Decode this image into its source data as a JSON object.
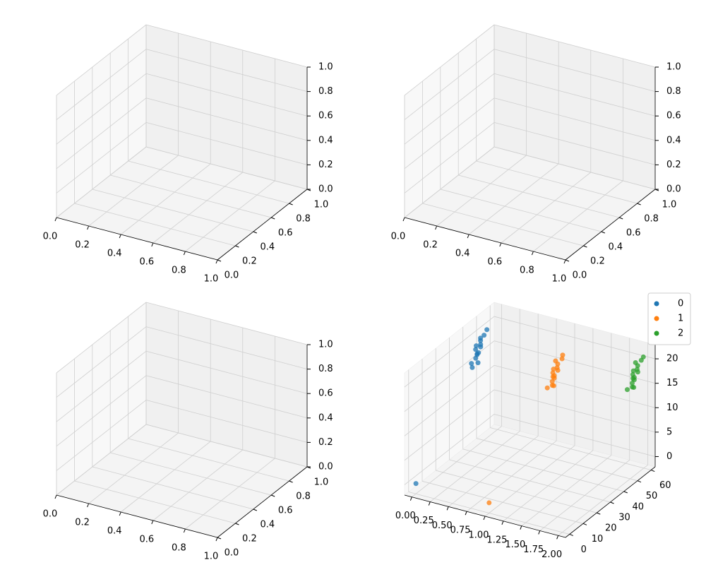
{
  "chart_data": [
    {
      "type": "scatter3d",
      "xlim": [
        0,
        1
      ],
      "ylim": [
        0,
        1
      ],
      "zlim": [
        0,
        1
      ],
      "xticks": [
        {
          "value": 0,
          "label": "0.0"
        },
        0.2,
        0.4,
        0.6,
        0.8,
        {
          "value": 1,
          "label": "1.0"
        }
      ],
      "yticks": [
        {
          "value": 0,
          "label": "0.0"
        },
        0.2,
        0.4,
        0.6,
        0.8,
        {
          "value": 1,
          "label": "1.0"
        }
      ],
      "zticks": [
        {
          "value": 0,
          "label": "0.0"
        },
        0.2,
        0.4,
        0.6,
        0.8,
        {
          "value": 1,
          "label": "1.0"
        }
      ]
    },
    {
      "type": "scatter3d",
      "xlim": [
        0,
        1
      ],
      "ylim": [
        0,
        1
      ],
      "zlim": [
        0,
        1
      ],
      "xticks": [
        {
          "value": 0,
          "label": "0.0"
        },
        0.2,
        0.4,
        0.6,
        0.8,
        {
          "value": 1,
          "label": "1.0"
        }
      ],
      "yticks": [
        {
          "value": 0,
          "label": "0.0"
        },
        0.2,
        0.4,
        0.6,
        0.8,
        {
          "value": 1,
          "label": "1.0"
        }
      ],
      "zticks": [
        {
          "value": 0,
          "label": "0.0"
        },
        0.2,
        0.4,
        0.6,
        0.8,
        {
          "value": 1,
          "label": "1.0"
        }
      ]
    },
    {
      "type": "scatter3d",
      "xlim": [
        0,
        1
      ],
      "ylim": [
        0,
        1
      ],
      "zlim": [
        0,
        1
      ],
      "xticks": [
        {
          "value": 0,
          "label": "0.0"
        },
        0.2,
        0.4,
        0.6,
        0.8,
        {
          "value": 1,
          "label": "1.0"
        }
      ],
      "yticks": [
        {
          "value": 0,
          "label": "0.0"
        },
        0.2,
        0.4,
        0.6,
        0.8,
        {
          "value": 1,
          "label": "1.0"
        }
      ],
      "zticks": [
        {
          "value": 0,
          "label": "0.0"
        },
        0.2,
        0.4,
        0.6,
        0.8,
        {
          "value": 1,
          "label": "1.0"
        }
      ]
    },
    {
      "type": "scatter3d",
      "xlim": [
        -0.1,
        2.1
      ],
      "ylim": [
        -3,
        63
      ],
      "zlim": [
        -2.1,
        22.9
      ],
      "xticks": [
        {
          "value": 0,
          "label": "0.00"
        },
        0.25,
        {
          "value": 0.5,
          "label": "0.50"
        },
        0.75,
        {
          "value": 1,
          "label": "1.00"
        },
        1.25,
        {
          "value": 1.5,
          "label": "1.50"
        },
        1.75,
        {
          "value": 2,
          "label": "2.00"
        }
      ],
      "yticks": [
        0,
        10,
        20,
        30,
        40,
        50,
        60
      ],
      "zticks": [
        0,
        5,
        10,
        15,
        20
      ],
      "legend": "upper right",
      "series": [
        {
          "name": "0",
          "color": "#1f77b4",
          "x": [
            0.02,
            -0.03,
            0.05,
            0.01,
            -0.02,
            0.04,
            0.0,
            0.03,
            -0.01,
            0.06,
            0.02,
            -0.04,
            0.01,
            0.03,
            0.0,
            0
          ],
          "y": [
            44,
            46,
            43,
            47,
            45,
            48,
            44,
            46,
            42,
            49,
            45,
            43,
            47,
            46,
            45,
            0
          ],
          "z": [
            17,
            18,
            15.5,
            19,
            17.5,
            20,
            16,
            18.5,
            14.5,
            21,
            17,
            15,
            19.5,
            18,
            16.5,
            0
          ]
        },
        {
          "name": "1",
          "color": "#ff7f0e",
          "x": [
            1.0,
            0.97,
            1.03,
            1.01,
            0.98,
            1.05,
            0.99,
            1.02,
            0.96,
            1.04,
            1.0,
            1.01,
            0.98,
            1.03,
            1.0,
            1
          ],
          "y": [
            47,
            49,
            46,
            50,
            48,
            51,
            47,
            49,
            45,
            52,
            48,
            46,
            50,
            49,
            48,
            0
          ],
          "z": [
            15.5,
            16.5,
            14,
            17.5,
            16,
            18.5,
            14.5,
            17,
            13.5,
            19,
            15,
            14,
            18,
            16.5,
            15.5,
            0
          ]
        },
        {
          "name": "2",
          "color": "#2ca02c",
          "x": [
            2.0,
            1.97,
            2.03,
            2.01,
            1.98,
            2.04,
            1.99,
            2.02,
            1.96,
            2.05,
            2.0,
            2.01,
            1.98,
            2.03,
            2.0
          ],
          "y": [
            52,
            54,
            51,
            55,
            53,
            56,
            52,
            54,
            50,
            57,
            53,
            51,
            55,
            54,
            53
          ],
          "z": [
            18,
            19,
            16.5,
            20,
            18.5,
            21,
            17,
            19.5,
            16,
            21.5,
            17.5,
            16.5,
            20.5,
            19,
            18
          ]
        }
      ]
    }
  ]
}
